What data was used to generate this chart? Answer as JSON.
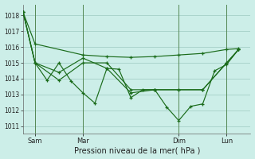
{
  "background_color": "#cceee8",
  "grid_color": "#aad4cc",
  "line_color": "#1a6b1a",
  "xlabel": "Pression niveau de la mer( hPa )",
  "ylim": [
    1010.5,
    1018.7
  ],
  "yticks": [
    1011,
    1012,
    1013,
    1014,
    1015,
    1016,
    1017,
    1018
  ],
  "xlim": [
    0,
    19
  ],
  "xtick_positions": [
    1,
    5,
    13,
    17
  ],
  "xtick_labels": [
    "Sam",
    "Mar",
    "Dim",
    "Lun"
  ],
  "vlines": [
    1,
    5,
    13,
    17
  ],
  "series": [
    {
      "x": [
        0,
        1,
        5,
        7,
        9,
        11,
        13,
        15,
        17,
        18
      ],
      "y": [
        1018.2,
        1016.2,
        1015.5,
        1015.4,
        1015.35,
        1015.4,
        1015.5,
        1015.6,
        1015.85,
        1015.9
      ]
    },
    {
      "x": [
        0,
        1,
        3,
        5,
        7,
        9,
        11,
        13,
        15,
        17,
        18
      ],
      "y": [
        1018.2,
        1015.0,
        1014.4,
        1015.3,
        1014.65,
        1013.1,
        1013.3,
        1013.3,
        1013.3,
        1015.0,
        1015.85
      ]
    },
    {
      "x": [
        0,
        1,
        2,
        3,
        4,
        5,
        6,
        7,
        8,
        9,
        10,
        11,
        12,
        13,
        14,
        15,
        16,
        17,
        18
      ],
      "y": [
        1018.2,
        1015.0,
        1013.9,
        1015.0,
        1013.85,
        1013.1,
        1012.45,
        1014.65,
        1014.6,
        1012.8,
        1013.3,
        1013.3,
        1012.2,
        1011.35,
        1012.25,
        1012.4,
        1014.5,
        1014.9,
        1015.85
      ]
    },
    {
      "x": [
        0,
        1,
        3,
        5,
        7,
        9,
        11,
        13,
        15,
        17,
        18
      ],
      "y": [
        1018.2,
        1015.0,
        1013.9,
        1015.0,
        1015.0,
        1013.3,
        1013.3,
        1013.3,
        1013.3,
        1015.0,
        1015.85
      ]
    }
  ]
}
